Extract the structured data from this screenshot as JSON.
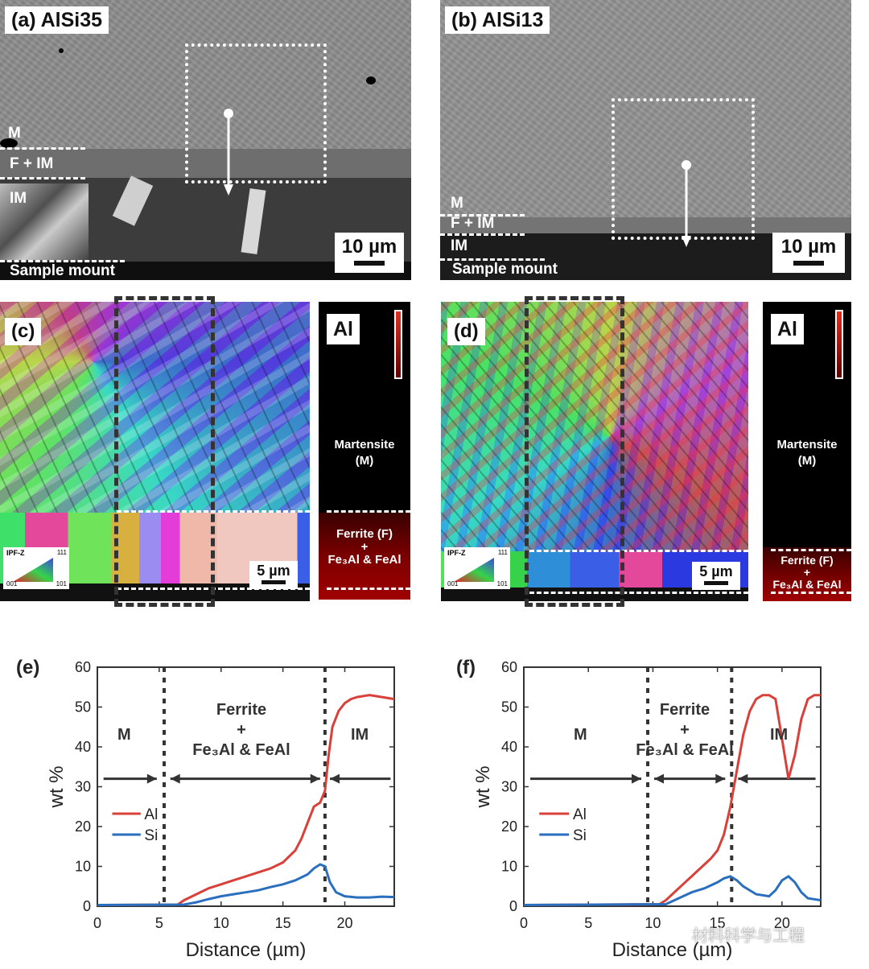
{
  "sem": {
    "a": {
      "label": "(a) AlSi35",
      "layers": [
        "M",
        "F + IM",
        "IM"
      ],
      "mount": "Sample mount",
      "scale": "10 µm"
    },
    "b": {
      "label": "(b) AlSi13",
      "layers": [
        "M",
        "F + IM",
        "IM"
      ],
      "mount": "Sample mount",
      "scale": "10 µm"
    }
  },
  "ebsd": {
    "c": {
      "label": "(c)",
      "scale": "5 µm",
      "ipf": {
        "title": "IPF-Z",
        "c111": "111",
        "c001": "001",
        "c101": "101"
      }
    },
    "d": {
      "label": "(d)",
      "scale": "5 µm",
      "ipf": {
        "title": "IPF-Z",
        "c111": "111",
        "c001": "001",
        "c101": "101"
      }
    }
  },
  "almap": {
    "c": {
      "element": "Al",
      "martensite": "Martensite",
      "martensite_abbr": "(M)",
      "ferrite": "Ferrite (F)",
      "plus": "+",
      "phases": "Fe₃Al & FeAl"
    },
    "d": {
      "element": "Al",
      "martensite": "Martensite",
      "martensite_abbr": "(M)",
      "ferrite": "Ferrite (F)",
      "plus": "+",
      "phases": "Fe₃Al & FeAl"
    }
  },
  "plots": {
    "e": {
      "label": "(e)",
      "regions": {
        "m": "M",
        "ferrite": "Ferrite",
        "plus": "+",
        "phases": "Fe₃Al & FeAl",
        "im": "IM"
      }
    },
    "f": {
      "label": "(f)",
      "regions": {
        "m": "M",
        "ferrite": "Ferrite",
        "plus": "+",
        "phases": "Fe₃Al & FeAl",
        "im": "IM"
      }
    }
  },
  "watermark": "材料科学与工程",
  "chart_data": [
    {
      "type": "line",
      "panel": "(e)",
      "xlabel": "Distance (µm)",
      "ylabel": "wt %",
      "xlim": [
        0,
        24
      ],
      "ylim": [
        0,
        60
      ],
      "xticks": [
        "0",
        "5",
        "10",
        "15",
        "20"
      ],
      "yticks": [
        "0",
        "10",
        "20",
        "30",
        "40",
        "50",
        "60"
      ],
      "boundaries": [
        5.4,
        18.4
      ],
      "colors": {
        "Al": "#d9403a",
        "Si": "#2a6fbf"
      },
      "series": [
        {
          "name": "Al",
          "x": [
            0,
            6.5,
            7,
            8,
            9,
            10,
            11,
            12,
            13,
            14,
            15,
            16,
            16.5,
            17,
            17.5,
            18,
            18.4,
            18.7,
            19,
            19.5,
            20,
            20.5,
            21,
            22,
            23,
            24
          ],
          "y": [
            0.3,
            0.4,
            1.5,
            3,
            4.5,
            5.5,
            6.5,
            7.5,
            8.5,
            9.5,
            11,
            14,
            17,
            21,
            25,
            26,
            29,
            38,
            45,
            49,
            51,
            52,
            52.5,
            53,
            52.5,
            52
          ]
        },
        {
          "name": "Si",
          "x": [
            0,
            7,
            8,
            9,
            10,
            11,
            12,
            13,
            14,
            15,
            16,
            17,
            17.5,
            18,
            18.4,
            18.8,
            19.3,
            20,
            21,
            22,
            23,
            24
          ],
          "y": [
            0.3,
            0.4,
            1,
            1.8,
            2.5,
            3,
            3.5,
            4,
            4.8,
            5.5,
            6.5,
            8,
            9.5,
            10.5,
            10,
            6,
            3.5,
            2.5,
            2.2,
            2.2,
            2.4,
            2.3
          ]
        }
      ]
    },
    {
      "type": "line",
      "panel": "(f)",
      "xlabel": "Distance (µm)",
      "ylabel": "wt %",
      "xlim": [
        0,
        23
      ],
      "ylim": [
        0,
        60
      ],
      "xticks": [
        "0",
        "5",
        "10",
        "15",
        "20"
      ],
      "yticks": [
        "0",
        "10",
        "20",
        "30",
        "40",
        "50",
        "60"
      ],
      "boundaries": [
        9.6,
        16.1
      ],
      "colors": {
        "Al": "#d9403a",
        "Si": "#2a6fbf"
      },
      "series": [
        {
          "name": "Al",
          "x": [
            0,
            10.5,
            11,
            11.5,
            12,
            12.5,
            13,
            13.5,
            14,
            14.5,
            15,
            15.5,
            16,
            16.5,
            17,
            17.5,
            18,
            18.5,
            19,
            19.5,
            20,
            20.5,
            21,
            21.5,
            22,
            22.5,
            23
          ],
          "y": [
            0.3,
            0.5,
            1.5,
            3,
            4.5,
            6,
            7.5,
            9,
            10.5,
            12,
            14,
            18,
            25,
            34,
            43,
            49,
            52,
            53,
            53,
            52,
            42,
            32,
            38,
            47,
            52,
            53,
            53
          ]
        },
        {
          "name": "Si",
          "x": [
            0,
            11,
            12,
            13,
            14,
            15,
            15.5,
            16,
            16.5,
            17,
            18,
            19,
            19.5,
            20,
            20.5,
            21,
            21.5,
            22,
            23
          ],
          "y": [
            0.3,
            0.5,
            2,
            3.5,
            4.5,
            6,
            7,
            7.5,
            6.5,
            5,
            3,
            2.5,
            4,
            6.5,
            7.5,
            6,
            3.5,
            2,
            1.5
          ]
        }
      ]
    }
  ]
}
